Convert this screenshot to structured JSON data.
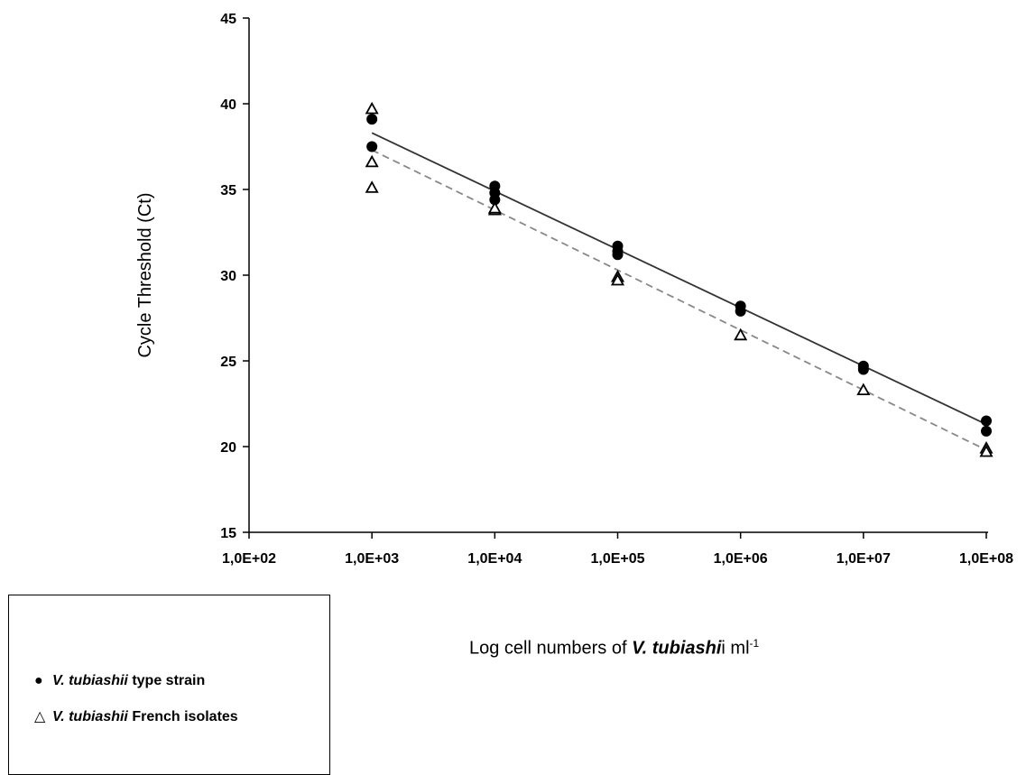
{
  "chart_data": {
    "type": "scatter",
    "title": "",
    "xlabel": {
      "prefix": "Log cell numbers of ",
      "italic": "V. tubiashi",
      "suffix": "i  ml",
      "sup": "-1"
    },
    "ylabel": "Cycle Threshold  (Ct)",
    "x_scale": "log",
    "xlim": [
      100,
      100000000
    ],
    "ylim": [
      15,
      45
    ],
    "x_tick_labels": [
      "1,0E+02",
      "1,0E+03",
      "1,0E+04",
      "1,0E+05",
      "1,0E+06",
      "1,0E+07",
      "1,0E+08"
    ],
    "y_ticks": [
      15,
      20,
      25,
      30,
      35,
      40,
      45
    ],
    "grid": false,
    "legend_position": "bottom-left",
    "series": [
      {
        "name_italic": "V. tubiashii",
        "name_rest": " type strain",
        "marker": "filled-circle",
        "line_style": "solid",
        "color": "#333333",
        "points": [
          {
            "x": 1000,
            "y": 39.1
          },
          {
            "x": 1000,
            "y": 37.5
          },
          {
            "x": 10000,
            "y": 35.2
          },
          {
            "x": 10000,
            "y": 34.8
          },
          {
            "x": 10000,
            "y": 34.4
          },
          {
            "x": 100000,
            "y": 31.7
          },
          {
            "x": 100000,
            "y": 31.4
          },
          {
            "x": 100000,
            "y": 31.2
          },
          {
            "x": 1000000,
            "y": 28.2
          },
          {
            "x": 1000000,
            "y": 27.9
          },
          {
            "x": 10000000,
            "y": 24.7
          },
          {
            "x": 10000000,
            "y": 24.5
          },
          {
            "x": 100000000,
            "y": 21.5
          },
          {
            "x": 100000000,
            "y": 20.9
          }
        ],
        "trendline": {
          "x": [
            1000,
            100000000
          ],
          "y": [
            38.3,
            21.3
          ]
        }
      },
      {
        "name_italic": "V. tubiashii",
        "name_rest": " French isolates",
        "marker": "open-triangle",
        "line_style": "dashed",
        "color": "#888888",
        "points": [
          {
            "x": 1000,
            "y": 39.7
          },
          {
            "x": 1000,
            "y": 36.6
          },
          {
            "x": 1000,
            "y": 35.1
          },
          {
            "x": 10000,
            "y": 33.8
          },
          {
            "x": 10000,
            "y": 33.9
          },
          {
            "x": 100000,
            "y": 29.9
          },
          {
            "x": 100000,
            "y": 29.7
          },
          {
            "x": 1000000,
            "y": 26.5
          },
          {
            "x": 10000000,
            "y": 23.3
          },
          {
            "x": 100000000,
            "y": 19.9
          },
          {
            "x": 100000000,
            "y": 19.7
          }
        ],
        "trendline": {
          "x": [
            1000,
            100000000
          ],
          "y": [
            37.3,
            19.8
          ]
        }
      }
    ]
  }
}
